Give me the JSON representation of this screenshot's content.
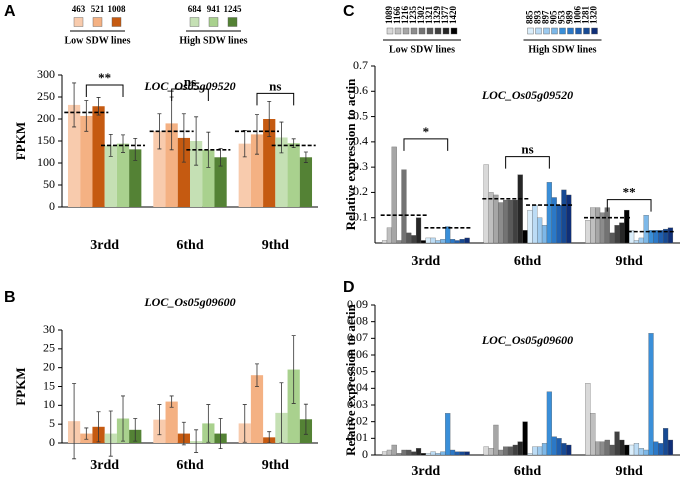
{
  "chart_data": [
    {
      "type": "bar",
      "panel": "A",
      "title": "LOC_Os05g09520",
      "y_label": "FPKM",
      "categories": [
        "3rdd",
        "6thd",
        "9thd"
      ],
      "legend_groups": [
        "Low SDW lines",
        "High SDW lines"
      ],
      "ylim": [
        0,
        300
      ],
      "yticks": [
        0,
        50,
        100,
        150,
        200,
        250,
        300
      ],
      "series": [
        {
          "name": "463",
          "color": "#f8cbad",
          "values": [
            232,
            172,
            144
          ],
          "errors": [
            50,
            40,
            30
          ]
        },
        {
          "name": "521",
          "color": "#f4b183",
          "values": [
            207,
            190,
            165
          ],
          "errors": [
            35,
            60,
            45
          ]
        },
        {
          "name": "1008",
          "color": "#c55a11",
          "values": [
            229,
            157,
            200
          ],
          "errors": [
            20,
            55,
            40
          ]
        },
        {
          "name": "684",
          "color": "#c5e0b4",
          "values": [
            140,
            150,
            158
          ],
          "errors": [
            25,
            55,
            35
          ]
        },
        {
          "name": "941",
          "color": "#a9d18e",
          "values": [
            144,
            130,
            145
          ],
          "errors": [
            20,
            40,
            10
          ]
        },
        {
          "name": "1245",
          "color": "#548235",
          "values": [
            131,
            113,
            113
          ],
          "errors": [
            25,
            20,
            12
          ]
        }
      ],
      "mean_lines": [
        [
          215,
          140
        ],
        [
          172,
          130
        ],
        [
          172,
          140
        ]
      ],
      "annotations": [
        "**",
        "ns",
        "ns"
      ]
    },
    {
      "type": "bar",
      "panel": "B",
      "title": "LOC_Os05g09600",
      "y_label": "FPKM",
      "categories": [
        "3rdd",
        "6thd",
        "9thd"
      ],
      "ylim": [
        0,
        30
      ],
      "yticks": [
        0,
        5,
        10,
        15,
        20,
        25,
        30
      ],
      "series": [
        {
          "color": "#f8cbad",
          "values": [
            5.8,
            6.2,
            5.2
          ],
          "errors": [
            10,
            4,
            5
          ]
        },
        {
          "color": "#f4b183",
          "values": [
            2.5,
            11,
            18
          ],
          "errors": [
            1.5,
            1.5,
            3
          ]
        },
        {
          "color": "#c55a11",
          "values": [
            4.3,
            2.5,
            1.5
          ],
          "errors": [
            4,
            3,
            1.5
          ]
        },
        {
          "color": "#c5e0b4",
          "values": [
            2.5,
            0.5,
            8
          ],
          "errors": [
            6,
            3,
            8
          ]
        },
        {
          "color": "#a9d18e",
          "values": [
            6.5,
            5.2,
            19.5
          ],
          "errors": [
            6,
            5,
            9
          ]
        },
        {
          "color": "#548235",
          "values": [
            3.5,
            2.5,
            6.3
          ],
          "errors": [
            3,
            4,
            4
          ]
        }
      ]
    },
    {
      "type": "bar",
      "panel": "C",
      "title": "LOC_Os05g09520",
      "y_label": "Relative expression to actin",
      "categories": [
        "3rdd",
        "6thd",
        "9thd"
      ],
      "legend_groups": [
        "Low SDW lines",
        "High SDW lines"
      ],
      "ylim": [
        0,
        0.7
      ],
      "yticks": [
        0.1,
        0.2,
        0.3,
        0.4,
        0.5,
        0.6,
        0.7
      ],
      "series": [
        {
          "name": "1089",
          "color": "#d9d9d9",
          "values": [
            0.01,
            0.31,
            0.09
          ]
        },
        {
          "name": "1166",
          "color": "#bfbfbf",
          "values": [
            0.06,
            0.2,
            0.14
          ]
        },
        {
          "name": "1216",
          "color": "#a6a6a6",
          "values": [
            0.38,
            0.19,
            0.14
          ]
        },
        {
          "name": "1235",
          "color": "#8c8c8c",
          "values": [
            0.01,
            0.16,
            0.12
          ]
        },
        {
          "name": "1302",
          "color": "#737373",
          "values": [
            0.29,
            0.17,
            0.14
          ]
        },
        {
          "name": "1321",
          "color": "#595959",
          "values": [
            0.04,
            0.17,
            0.04
          ]
        },
        {
          "name": "1329",
          "color": "#404040",
          "values": [
            0.03,
            0.17,
            0.07
          ]
        },
        {
          "name": "1377",
          "color": "#262626",
          "values": [
            0.1,
            0.27,
            0.08
          ]
        },
        {
          "name": "1420",
          "color": "#000000",
          "values": [
            0.01,
            0.05,
            0.13
          ]
        },
        {
          "name": "885",
          "color": "#dbeefb",
          "values": [
            0.02,
            0.13,
            0.05
          ]
        },
        {
          "name": "893",
          "color": "#bcdcf5",
          "values": [
            0.02,
            0.15,
            0.01
          ]
        },
        {
          "name": "897",
          "color": "#9ccaef",
          "values": [
            0.01,
            0.1,
            0.02
          ]
        },
        {
          "name": "905",
          "color": "#7db8e8",
          "values": [
            0.015,
            0.07,
            0.11
          ]
        },
        {
          "name": "953",
          "color": "#3a8fd9",
          "values": [
            0.065,
            0.24,
            0.05
          ]
        },
        {
          "name": "989",
          "color": "#2b78c7",
          "values": [
            0.015,
            0.18,
            0.05
          ]
        },
        {
          "name": "1006",
          "color": "#1f5fb0",
          "values": [
            0.01,
            0.15,
            0.05
          ]
        },
        {
          "name": "1281",
          "color": "#174a94",
          "values": [
            0.015,
            0.21,
            0.055
          ]
        },
        {
          "name": "1320",
          "color": "#0f2f78",
          "values": [
            0.02,
            0.19,
            0.06
          ]
        }
      ],
      "mean_lines": [
        [
          0.11,
          0.06
        ],
        [
          0.175,
          0.15
        ],
        [
          0.1,
          0.045
        ]
      ],
      "annotations": [
        "*",
        "ns",
        "**"
      ]
    },
    {
      "type": "bar",
      "panel": "D",
      "title": "LOC_Os05g09600",
      "y_label": "Relative expression to actin",
      "categories": [
        "3rdd",
        "6thd",
        "9thd"
      ],
      "ylim": [
        0,
        0.09
      ],
      "yticks": [
        0,
        0.01,
        0.02,
        0.03,
        0.04,
        0.05,
        0.06,
        0.07,
        0.08,
        0.09
      ],
      "series": [
        {
          "color": "#d9d9d9",
          "values": [
            0.002,
            0.005,
            0.043
          ]
        },
        {
          "color": "#bfbfbf",
          "values": [
            0.003,
            0.004,
            0.025
          ]
        },
        {
          "color": "#a6a6a6",
          "values": [
            0.006,
            0.018,
            0.008
          ]
        },
        {
          "color": "#8c8c8c",
          "values": [
            0.001,
            0.003,
            0.008
          ]
        },
        {
          "color": "#737373",
          "values": [
            0.003,
            0.005,
            0.009
          ]
        },
        {
          "color": "#595959",
          "values": [
            0.003,
            0.005,
            0.006
          ]
        },
        {
          "color": "#404040",
          "values": [
            0.002,
            0.006,
            0.014
          ]
        },
        {
          "color": "#262626",
          "values": [
            0.004,
            0.008,
            0.009
          ]
        },
        {
          "color": "#000000",
          "values": [
            0.001,
            0.02,
            0.006
          ]
        },
        {
          "color": "#dbeefb",
          "values": [
            0.001,
            0.001,
            0.006
          ]
        },
        {
          "color": "#bcdcf5",
          "values": [
            0.002,
            0.005,
            0.007
          ]
        },
        {
          "color": "#9ccaef",
          "values": [
            0.001,
            0.005,
            0.004
          ]
        },
        {
          "color": "#7db8e8",
          "values": [
            0.002,
            0.007,
            0.003
          ]
        },
        {
          "color": "#3a8fd9",
          "values": [
            0.025,
            0.038,
            0.073
          ]
        },
        {
          "color": "#2b78c7",
          "values": [
            0.003,
            0.011,
            0.008
          ]
        },
        {
          "color": "#1f5fb0",
          "values": [
            0.002,
            0.01,
            0.007
          ]
        },
        {
          "color": "#174a94",
          "values": [
            0.002,
            0.007,
            0.016
          ]
        },
        {
          "color": "#0f2f78",
          "values": [
            0.002,
            0.006,
            0.009
          ]
        }
      ]
    }
  ]
}
